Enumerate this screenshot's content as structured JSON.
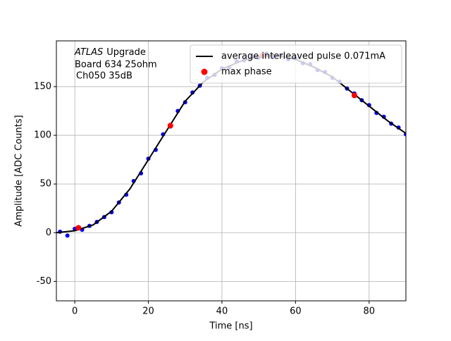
{
  "chart_data": {
    "type": "scatter",
    "xlabel": "Time [ns]",
    "ylabel": "Amplitude [ADC Counts]",
    "annotation": [
      "ATLAS",
      "Upgrade",
      "Board 634 25ohm",
      "Ch050 35dB"
    ],
    "xlim": [
      -5,
      90
    ],
    "ylim": [
      -70,
      197
    ],
    "xticks": [
      0,
      20,
      40,
      60,
      80
    ],
    "yticks": [
      -50,
      0,
      50,
      100,
      150
    ],
    "grid": true,
    "legend": "upper right",
    "series": [
      {
        "color": "#0000ff",
        "kind": "scatter",
        "x": [
          -4,
          -2,
          0,
          2,
          4,
          6,
          8,
          10,
          12,
          14,
          16,
          18,
          20,
          22,
          24,
          26,
          28,
          30,
          32,
          34,
          36,
          38,
          40,
          42,
          44,
          46,
          48,
          50,
          52,
          54,
          56,
          58,
          60,
          62,
          64,
          66,
          68,
          70,
          72,
          74,
          76,
          78,
          80,
          82,
          84,
          86,
          88,
          90
        ],
        "values": [
          1,
          -3,
          4,
          3,
          7,
          11,
          16,
          21,
          31,
          39,
          53,
          61,
          76,
          85,
          101,
          109,
          125,
          134,
          144,
          151,
          159,
          162,
          169,
          170,
          176,
          177,
          181,
          180,
          184,
          181,
          182,
          178,
          179,
          174,
          173,
          167,
          165,
          159,
          155,
          148,
          143,
          136,
          131,
          123,
          119,
          112,
          108,
          101
        ]
      },
      {
        "name": "average interleaved pulse 0.071mA",
        "color": "#000000",
        "kind": "line",
        "x": [
          -5,
          0,
          5,
          10,
          15,
          20,
          25,
          30,
          35,
          40,
          45,
          50,
          55,
          60,
          65,
          70,
          75,
          80,
          85,
          90
        ],
        "values": [
          0,
          2,
          8,
          22,
          45,
          75,
          105,
          135,
          155,
          168,
          176,
          181,
          182,
          178,
          170,
          160,
          145,
          130,
          115,
          102
        ]
      },
      {
        "name": "max phase",
        "color": "#ff0000",
        "kind": "scatter",
        "x": [
          1,
          26,
          51,
          76
        ],
        "values": [
          5,
          110,
          182,
          141
        ]
      }
    ]
  }
}
